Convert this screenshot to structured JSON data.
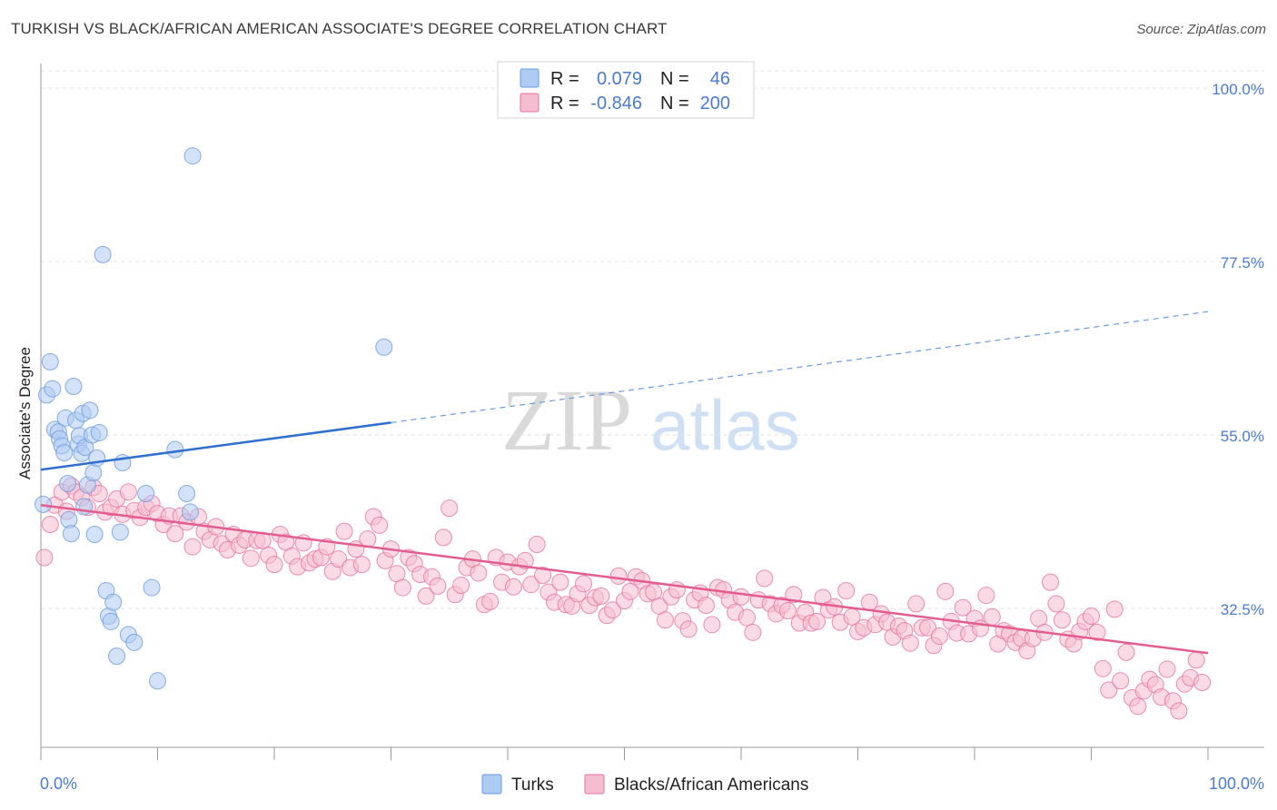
{
  "title": "TURKISH VS BLACK/AFRICAN AMERICAN ASSOCIATE'S DEGREE CORRELATION CHART",
  "source": "Source: ZipAtlas.com",
  "watermark": {
    "part1": "ZIP",
    "part2": "atlas"
  },
  "colors": {
    "turks": "#6a9ae0",
    "turks_fill": "#aecbf3",
    "blacks": "#e8729b",
    "blacks_fill": "#f5bdd0",
    "label": "#4a7bd0"
  },
  "legend": {
    "rows": [
      {
        "r_label": "R =",
        "r_value": "0.079",
        "n_label": "N =",
        "n_value": "46"
      },
      {
        "r_label": "R =",
        "r_value": "-0.846",
        "n_label": "N =",
        "n_value": "200"
      }
    ]
  },
  "bottom_legend": [
    "Turks",
    "Blacks/African Americans"
  ],
  "chart_data": {
    "type": "scatter",
    "title": "TURKISH VS BLACK/AFRICAN AMERICAN ASSOCIATE'S DEGREE CORRELATION CHART",
    "ylabel": "Associate's Degree",
    "xlabel": "",
    "x_tick_labels": [
      "0.0%",
      "100.0%"
    ],
    "y_tick_labels": [
      "100.0%",
      "77.5%",
      "55.0%",
      "32.5%"
    ],
    "y_ticks": [
      100,
      77.5,
      55,
      32.5
    ],
    "xlim": [
      0,
      100
    ],
    "ylim": [
      14,
      104
    ],
    "grid": true,
    "series": [
      {
        "name": "Turks",
        "r": 0.079,
        "n": 46,
        "trend": {
          "x0": 0,
          "y0": 50.5,
          "x1": 30,
          "y1": 56.6,
          "dashed_to_x": 100,
          "dashed_to_y": 71.0
        },
        "points": [
          [
            0.2,
            46.0
          ],
          [
            0.5,
            60.2
          ],
          [
            0.8,
            64.5
          ],
          [
            1.0,
            61.0
          ],
          [
            1.2,
            55.7
          ],
          [
            1.5,
            55.4
          ],
          [
            1.6,
            54.5
          ],
          [
            1.8,
            53.6
          ],
          [
            2.0,
            52.7
          ],
          [
            2.1,
            57.2
          ],
          [
            2.3,
            48.7
          ],
          [
            2.4,
            44.0
          ],
          [
            2.6,
            42.2
          ],
          [
            2.8,
            61.3
          ],
          [
            3.0,
            56.9
          ],
          [
            3.2,
            53.8
          ],
          [
            3.3,
            54.9
          ],
          [
            3.5,
            52.6
          ],
          [
            3.6,
            57.8
          ],
          [
            3.8,
            53.4
          ],
          [
            4.0,
            48.5
          ],
          [
            4.2,
            58.2
          ],
          [
            4.4,
            55.0
          ],
          [
            4.5,
            50.1
          ],
          [
            4.6,
            42.1
          ],
          [
            4.8,
            52.0
          ],
          [
            5.0,
            55.3
          ],
          [
            5.3,
            78.4
          ],
          [
            5.6,
            34.8
          ],
          [
            5.8,
            31.5
          ],
          [
            6.0,
            30.8
          ],
          [
            6.2,
            33.3
          ],
          [
            6.5,
            26.3
          ],
          [
            6.8,
            42.4
          ],
          [
            7.0,
            51.4
          ],
          [
            7.5,
            29.1
          ],
          [
            8.0,
            28.1
          ],
          [
            9.0,
            47.4
          ],
          [
            9.5,
            35.2
          ],
          [
            10.0,
            23.1
          ],
          [
            11.5,
            53.1
          ],
          [
            12.5,
            47.4
          ],
          [
            12.8,
            45.0
          ],
          [
            13.0,
            91.2
          ],
          [
            29.4,
            66.4
          ],
          [
            3.7,
            45.7
          ]
        ]
      },
      {
        "name": "Blacks/African Americans",
        "r": -0.846,
        "n": 200,
        "trend": {
          "x0": 0,
          "y0": 45.9,
          "x1": 100,
          "y1": 26.7
        },
        "points": [
          [
            0.3,
            39.1
          ],
          [
            0.8,
            43.4
          ],
          [
            1.2,
            45.9
          ],
          [
            1.8,
            47.6
          ],
          [
            2.2,
            45.1
          ],
          [
            2.6,
            48.4
          ],
          [
            3.0,
            47.6
          ],
          [
            3.5,
            46.9
          ],
          [
            4.0,
            45.6
          ],
          [
            4.5,
            48.2
          ],
          [
            5.0,
            47.4
          ],
          [
            5.5,
            45.0
          ],
          [
            6.0,
            45.6
          ],
          [
            6.5,
            46.7
          ],
          [
            7.0,
            44.7
          ],
          [
            7.5,
            47.6
          ],
          [
            8.0,
            45.2
          ],
          [
            8.5,
            44.3
          ],
          [
            9.0,
            45.6
          ],
          [
            9.5,
            46.1
          ],
          [
            10.0,
            44.8
          ],
          [
            10.5,
            43.4
          ],
          [
            11.0,
            44.5
          ],
          [
            11.5,
            42.2
          ],
          [
            12.0,
            44.5
          ],
          [
            12.5,
            43.7
          ],
          [
            13.0,
            40.5
          ],
          [
            13.5,
            44.4
          ],
          [
            14.0,
            42.5
          ],
          [
            14.5,
            41.4
          ],
          [
            15.0,
            43.1
          ],
          [
            15.5,
            40.9
          ],
          [
            16.0,
            40.1
          ],
          [
            16.5,
            42.1
          ],
          [
            17.0,
            40.7
          ],
          [
            17.5,
            41.4
          ],
          [
            18.0,
            39.0
          ],
          [
            18.5,
            41.3
          ],
          [
            19.0,
            41.3
          ],
          [
            19.5,
            39.4
          ],
          [
            20.0,
            38.2
          ],
          [
            20.5,
            42.1
          ],
          [
            21.0,
            41.1
          ],
          [
            21.5,
            39.3
          ],
          [
            22.0,
            37.9
          ],
          [
            22.5,
            41.0
          ],
          [
            23.0,
            38.4
          ],
          [
            23.5,
            38.9
          ],
          [
            24.0,
            39.1
          ],
          [
            24.5,
            40.5
          ],
          [
            25.0,
            37.3
          ],
          [
            25.5,
            38.9
          ],
          [
            26.0,
            42.5
          ],
          [
            26.5,
            37.8
          ],
          [
            27.0,
            40.2
          ],
          [
            27.5,
            38.2
          ],
          [
            28.0,
            41.5
          ],
          [
            28.5,
            44.4
          ],
          [
            29.0,
            43.3
          ],
          [
            29.5,
            38.7
          ],
          [
            30.0,
            40.2
          ],
          [
            30.5,
            37.0
          ],
          [
            31.0,
            35.2
          ],
          [
            31.5,
            39.1
          ],
          [
            32.0,
            38.3
          ],
          [
            32.5,
            36.9
          ],
          [
            33.0,
            34.1
          ],
          [
            33.5,
            36.6
          ],
          [
            34.0,
            35.4
          ],
          [
            34.5,
            41.7
          ],
          [
            35.0,
            45.5
          ],
          [
            35.5,
            34.3
          ],
          [
            36.0,
            35.5
          ],
          [
            36.5,
            37.8
          ],
          [
            37.0,
            38.9
          ],
          [
            37.5,
            37.1
          ],
          [
            38.0,
            33.0
          ],
          [
            38.5,
            33.4
          ],
          [
            39.0,
            39.1
          ],
          [
            39.5,
            35.9
          ],
          [
            40.0,
            38.5
          ],
          [
            40.5,
            35.3
          ],
          [
            41.0,
            37.9
          ],
          [
            41.5,
            38.7
          ],
          [
            42.0,
            35.6
          ],
          [
            42.5,
            40.8
          ],
          [
            43.0,
            36.8
          ],
          [
            43.5,
            34.6
          ],
          [
            44.0,
            33.3
          ],
          [
            44.5,
            35.9
          ],
          [
            45.0,
            33.0
          ],
          [
            45.5,
            32.8
          ],
          [
            46.0,
            34.4
          ],
          [
            46.5,
            35.7
          ],
          [
            47.0,
            32.9
          ],
          [
            47.5,
            33.9
          ],
          [
            48.0,
            34.1
          ],
          [
            48.5,
            31.6
          ],
          [
            49.0,
            32.3
          ],
          [
            49.5,
            36.7
          ],
          [
            50.0,
            33.5
          ],
          [
            50.5,
            34.7
          ],
          [
            51.0,
            36.6
          ],
          [
            51.5,
            36.1
          ],
          [
            52.0,
            34.4
          ],
          [
            52.5,
            34.6
          ],
          [
            53.0,
            32.8
          ],
          [
            53.5,
            31.0
          ],
          [
            54.0,
            34.0
          ],
          [
            54.5,
            34.9
          ],
          [
            55.0,
            30.9
          ],
          [
            55.5,
            29.8
          ],
          [
            56.0,
            33.6
          ],
          [
            56.5,
            34.5
          ],
          [
            57.0,
            32.9
          ],
          [
            57.5,
            30.4
          ],
          [
            58.0,
            35.2
          ],
          [
            58.5,
            34.9
          ],
          [
            59.0,
            33.6
          ],
          [
            59.5,
            32.0
          ],
          [
            60.0,
            34.0
          ],
          [
            60.5,
            31.3
          ],
          [
            61.0,
            29.4
          ],
          [
            61.5,
            33.6
          ],
          [
            62.0,
            36.4
          ],
          [
            62.5,
            33.1
          ],
          [
            63.0,
            31.8
          ],
          [
            63.5,
            32.9
          ],
          [
            64.0,
            32.2
          ],
          [
            64.5,
            34.3
          ],
          [
            65.0,
            30.6
          ],
          [
            65.5,
            32.0
          ],
          [
            66.0,
            30.6
          ],
          [
            66.5,
            30.8
          ],
          [
            67.0,
            33.9
          ],
          [
            67.5,
            32.3
          ],
          [
            68.0,
            32.7
          ],
          [
            68.5,
            30.7
          ],
          [
            69.0,
            34.8
          ],
          [
            69.5,
            31.4
          ],
          [
            70.0,
            29.5
          ],
          [
            70.5,
            30.0
          ],
          [
            71.0,
            33.3
          ],
          [
            71.5,
            30.4
          ],
          [
            72.0,
            31.8
          ],
          [
            72.5,
            30.7
          ],
          [
            73.0,
            28.8
          ],
          [
            73.5,
            30.2
          ],
          [
            74.0,
            29.6
          ],
          [
            74.5,
            28.0
          ],
          [
            75.0,
            33.1
          ],
          [
            75.5,
            30.0
          ],
          [
            76.0,
            30.0
          ],
          [
            76.5,
            27.7
          ],
          [
            77.0,
            28.9
          ],
          [
            77.5,
            34.7
          ],
          [
            78.0,
            30.8
          ],
          [
            78.5,
            29.3
          ],
          [
            79.0,
            32.6
          ],
          [
            79.5,
            29.2
          ],
          [
            80.0,
            31.2
          ],
          [
            80.5,
            29.9
          ],
          [
            81.0,
            34.2
          ],
          [
            81.5,
            31.4
          ],
          [
            82.0,
            27.9
          ],
          [
            82.5,
            29.6
          ],
          [
            83.0,
            29.2
          ],
          [
            83.5,
            28.1
          ],
          [
            84.0,
            28.6
          ],
          [
            84.5,
            27.0
          ],
          [
            85.0,
            28.6
          ],
          [
            85.5,
            31.2
          ],
          [
            86.0,
            29.4
          ],
          [
            86.5,
            35.9
          ],
          [
            87.0,
            33.1
          ],
          [
            87.5,
            31.0
          ],
          [
            88.0,
            28.5
          ],
          [
            88.5,
            27.9
          ],
          [
            89.0,
            29.5
          ],
          [
            89.5,
            30.8
          ],
          [
            90.0,
            31.5
          ],
          [
            90.5,
            29.4
          ],
          [
            91.0,
            24.7
          ],
          [
            91.5,
            21.9
          ],
          [
            92.0,
            32.4
          ],
          [
            92.5,
            23.1
          ],
          [
            93.0,
            26.8
          ],
          [
            93.5,
            20.9
          ],
          [
            94.0,
            19.8
          ],
          [
            94.5,
            21.8
          ],
          [
            95.0,
            23.3
          ],
          [
            95.5,
            22.6
          ],
          [
            96.0,
            21.0
          ],
          [
            96.5,
            24.6
          ],
          [
            97.0,
            20.5
          ],
          [
            97.5,
            19.2
          ],
          [
            98.0,
            22.7
          ],
          [
            98.5,
            23.5
          ],
          [
            99.0,
            25.8
          ],
          [
            99.5,
            22.9
          ]
        ]
      }
    ]
  }
}
